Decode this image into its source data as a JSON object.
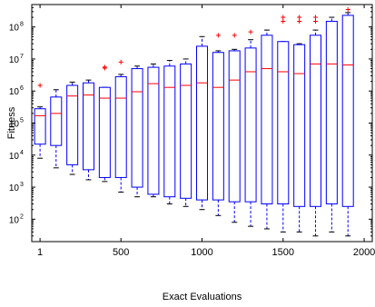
{
  "chart_data": {
    "type": "boxplot",
    "xlabel": "Exact Evaluations",
    "ylabel": "Fitness",
    "yscale": "log",
    "ylim": [
      20,
      500000000
    ],
    "xlim": [
      -50,
      2050
    ],
    "xticks": [
      1,
      500,
      1000,
      1500,
      2000
    ],
    "xtick_labels": [
      "1",
      "500",
      "1000",
      "1500",
      "2000"
    ],
    "yticks": [
      100,
      1000,
      10000,
      100000,
      1000000,
      10000000,
      100000000
    ],
    "ytick_labels": [
      {
        "base": "10",
        "exp": "2"
      },
      {
        "base": "10",
        "exp": "3"
      },
      {
        "base": "10",
        "exp": "4"
      },
      {
        "base": "10",
        "exp": "5"
      },
      {
        "base": "10",
        "exp": "6"
      },
      {
        "base": "10",
        "exp": "7"
      },
      {
        "base": "10",
        "exp": "8"
      }
    ],
    "grid": false,
    "colors": {
      "box": "#0000ff",
      "median": "#ff0000",
      "outlier": "#ff0000",
      "whisker_cap": "#000000"
    },
    "boxes": [
      {
        "x": 1,
        "whislo": 8000,
        "q1": 22000,
        "med": 170000,
        "q3": 280000,
        "whishi": 320000,
        "fliers": [
          1500000
        ]
      },
      {
        "x": 100,
        "whislo": 4000,
        "q1": 20000,
        "med": 200000,
        "q3": 650000,
        "whishi": 1100000,
        "fliers": []
      },
      {
        "x": 200,
        "whislo": 2500,
        "q1": 5000,
        "med": 700000,
        "q3": 1500000,
        "whishi": 1900000,
        "fliers": []
      },
      {
        "x": 300,
        "whislo": 1700,
        "q1": 3500,
        "med": 750000,
        "q3": 1800000,
        "whishi": 2200000,
        "fliers": []
      },
      {
        "x": 400,
        "whislo": 1500,
        "q1": 2000,
        "med": 600000,
        "q3": 1300000,
        "whishi": 1300000,
        "fliers": [
          5200000,
          5600000
        ]
      },
      {
        "x": 500,
        "whislo": 700,
        "q1": 2000,
        "med": 600000,
        "q3": 2800000,
        "whishi": 3300000,
        "fliers": [
          8000000
        ]
      },
      {
        "x": 600,
        "whislo": 500,
        "q1": 1000,
        "med": 950000,
        "q3": 5000000,
        "whishi": 6000000,
        "fliers": []
      },
      {
        "x": 700,
        "whislo": 500,
        "q1": 600,
        "med": 1700000,
        "q3": 5500000,
        "whishi": 7000000,
        "fliers": []
      },
      {
        "x": 800,
        "whislo": 300,
        "q1": 500,
        "med": 1300000,
        "q3": 6000000,
        "whishi": 9000000,
        "fliers": []
      },
      {
        "x": 900,
        "whislo": 250,
        "q1": 450,
        "med": 1500000,
        "q3": 7000000,
        "whishi": 10000000,
        "fliers": []
      },
      {
        "x": 1000,
        "whislo": 200,
        "q1": 400,
        "med": 1800000,
        "q3": 25000000,
        "whishi": 50000000,
        "fliers": []
      },
      {
        "x": 1100,
        "whislo": 130,
        "q1": 400,
        "med": 1300000,
        "q3": 16000000,
        "whishi": 18000000,
        "fliers": [
          55000000
        ]
      },
      {
        "x": 1200,
        "whislo": 80,
        "q1": 350,
        "med": 2200000,
        "q3": 18000000,
        "whishi": 20000000,
        "fliers": [
          55000000
        ]
      },
      {
        "x": 1300,
        "whislo": 60,
        "q1": 350,
        "med": 4000000,
        "q3": 22000000,
        "whishi": 40000000,
        "fliers": [
          70000000
        ]
      },
      {
        "x": 1400,
        "whislo": 50,
        "q1": 300,
        "med": 5000000,
        "q3": 55000000,
        "whishi": 80000000,
        "fliers": []
      },
      {
        "x": 1500,
        "whislo": 40,
        "q1": 300,
        "med": 4000000,
        "q3": 35000000,
        "whishi": 35000000,
        "fliers": [
          150000000,
          200000000
        ]
      },
      {
        "x": 1600,
        "whislo": 40,
        "q1": 250,
        "med": 3500000,
        "q3": 28000000,
        "whishi": 30000000,
        "fliers": [
          150000000,
          200000000
        ]
      },
      {
        "x": 1700,
        "whislo": 30,
        "q1": 250,
        "med": 7000000,
        "q3": 55000000,
        "whishi": 80000000,
        "fliers": [
          150000000,
          200000000
        ]
      },
      {
        "x": 1800,
        "whislo": 40,
        "q1": 300,
        "med": 7000000,
        "q3": 150000000,
        "whishi": 200000000,
        "fliers": []
      },
      {
        "x": 1900,
        "whislo": 30,
        "q1": 250,
        "med": 6500000,
        "q3": 230000000,
        "whishi": 280000000,
        "fliers": [
          350000000
        ]
      }
    ]
  }
}
